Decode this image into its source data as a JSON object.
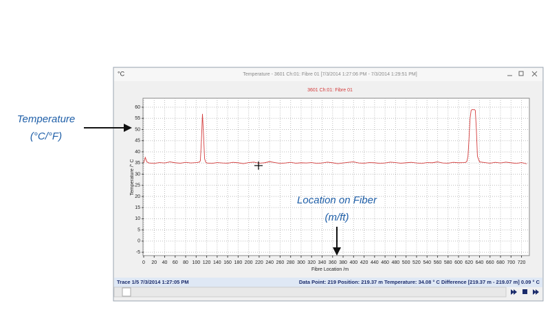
{
  "annotations": {
    "y_label_1": "Temperature",
    "y_label_2": "(°C/°F)",
    "x_label_1": "Location on Fiber",
    "x_label_2": "(m/ft)"
  },
  "window": {
    "icon": "°C",
    "title": "Temperature - 3601 Ch:01: Fibre 01 [7/3/2014 1:27:06 PM - 7/3/2014 1:29:51 PM]",
    "status_left": "Trace 1/5  7/3/2014 1:27:05 PM",
    "status_right": "Data Point: 219 Position: 219.37 m Temperature: 34.08 ° C Difference [219.37 m - 219.07 m] 0.09 ° C"
  },
  "chart_data": {
    "type": "line",
    "title": "3601 Ch:01: Fibre 01",
    "x_label": "Fibre Location /m",
    "y_label": "Temperature /° C",
    "xlim": [
      0,
      735
    ],
    "ylim": [
      -6.5,
      64
    ],
    "xticks": [
      0,
      20,
      40,
      60,
      80,
      100,
      120,
      140,
      160,
      180,
      200,
      220,
      240,
      260,
      280,
      300,
      320,
      340,
      360,
      380,
      400,
      420,
      440,
      460,
      480,
      500,
      520,
      540,
      560,
      580,
      600,
      620,
      640,
      660,
      680,
      700,
      720
    ],
    "yticks": [
      -5,
      0,
      5,
      10,
      15,
      20,
      25,
      30,
      35,
      40,
      45,
      50,
      55,
      60
    ],
    "grid": true,
    "x": [
      0,
      3,
      6,
      10,
      20,
      30,
      40,
      50,
      60,
      70,
      80,
      90,
      100,
      106,
      108,
      110,
      112,
      114,
      116,
      118,
      120,
      130,
      140,
      150,
      160,
      170,
      180,
      190,
      200,
      210,
      220,
      230,
      240,
      250,
      260,
      270,
      280,
      290,
      300,
      310,
      320,
      330,
      340,
      350,
      360,
      370,
      380,
      390,
      400,
      410,
      420,
      430,
      440,
      450,
      460,
      470,
      480,
      490,
      500,
      510,
      520,
      530,
      540,
      550,
      560,
      570,
      580,
      590,
      600,
      610,
      614,
      616,
      618,
      620,
      622,
      624,
      626,
      628,
      630,
      632,
      634,
      636,
      640,
      650,
      660,
      670,
      680,
      690,
      700,
      710,
      720,
      730
    ],
    "series": [
      {
        "color": "#d33a3a",
        "values": [
          35,
          37.5,
          35.5,
          35,
          34.8,
          35.2,
          35,
          35.5,
          35.1,
          34.9,
          35.3,
          35,
          35.2,
          35.4,
          36,
          45,
          57,
          48,
          37,
          35.5,
          35,
          34.8,
          35.2,
          35,
          34.9,
          35.3,
          35.1,
          34.7,
          35.2,
          35.4,
          34.9,
          35.1,
          35.6,
          35.2,
          34.8,
          35,
          35.3,
          34.9,
          35.1,
          35,
          35.2,
          34.8,
          35,
          35.4,
          35.1,
          34.7,
          35,
          35.3,
          35.5,
          35,
          34.9,
          35.2,
          35.1,
          34.8,
          35,
          35.4,
          35.2,
          34.9,
          35.1,
          35.3,
          35,
          34.8,
          35.2,
          35.1,
          35.5,
          35,
          34.9,
          35.3,
          35.1,
          35.2,
          35.3,
          35.8,
          38,
          46,
          55,
          58.5,
          59,
          58.8,
          59,
          58.5,
          50,
          38,
          35.5,
          35.2,
          34.9,
          35.3,
          35,
          35.4,
          35.1,
          34.8,
          35.2,
          34.6
        ]
      }
    ]
  }
}
